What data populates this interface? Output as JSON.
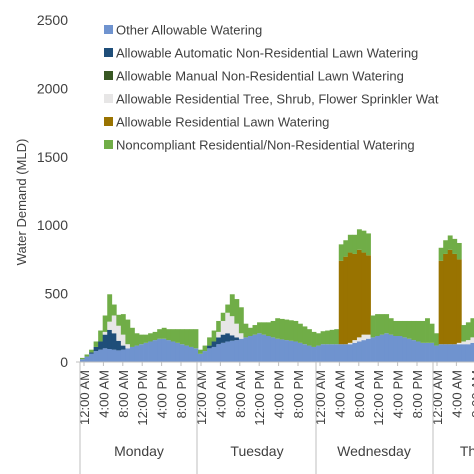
{
  "chart_data": {
    "type": "bar",
    "stacked": true,
    "title": "",
    "xlabel": "",
    "ylabel": "Water Demand (MLD)",
    "ylim": [
      0,
      2500
    ],
    "yticks": [
      0,
      500,
      1000,
      1500,
      2000,
      2500
    ],
    "grid": false,
    "legend_position": "top-right",
    "interval_hours": 2,
    "hour_tick_labels": [
      "12:00 AM",
      "4:00 AM",
      "8:00 AM",
      "12:00 PM",
      "4:00 PM",
      "8:00 PM"
    ],
    "days": [
      "Monday",
      "Tuesday",
      "Wednesday",
      "Th"
    ],
    "hour_ticks_per_day": [
      6,
      6,
      6,
      3
    ],
    "legend_order": [
      "noncomp",
      "res_lawn",
      "res_tree",
      "man_nonres",
      "auto_nonres",
      "other"
    ],
    "series": [
      {
        "key": "other",
        "name": "Other Allowable Watering",
        "color": "#6f93cf",
        "values": [
          20,
          40,
          60,
          80,
          90,
          100,
          95,
          90,
          85,
          90,
          100,
          110,
          120,
          130,
          140,
          150,
          160,
          170,
          170,
          160,
          150,
          140,
          130,
          120,
          110,
          100,
          60,
          80,
          100,
          110,
          130,
          140,
          150,
          155,
          160,
          170,
          180,
          190,
          200,
          210,
          200,
          190,
          180,
          170,
          165,
          160,
          155,
          150,
          140,
          130,
          120,
          110,
          120,
          130,
          130,
          130,
          130,
          130,
          130,
          130,
          140,
          150,
          160,
          170,
          180,
          190,
          200,
          210,
          200,
          190,
          190,
          180,
          170,
          160,
          150,
          140,
          140,
          140,
          120,
          130,
          130,
          130,
          130,
          130,
          130,
          130,
          140,
          150,
          160,
          170
        ]
      },
      {
        "key": "auto_nonres",
        "name": "Allowable Automatic Non-Residential Lawn Watering",
        "color": "#1f4e79",
        "values": [
          0,
          0,
          10,
          30,
          60,
          100,
          140,
          120,
          70,
          30,
          0,
          0,
          0,
          0,
          0,
          0,
          0,
          0,
          0,
          0,
          0,
          0,
          0,
          0,
          0,
          0,
          0,
          0,
          20,
          40,
          50,
          60,
          60,
          40,
          20,
          0,
          0,
          0,
          0,
          0,
          0,
          0,
          0,
          0,
          0,
          0,
          0,
          0,
          0,
          0,
          0,
          0,
          0,
          0,
          0,
          0,
          0,
          0,
          0,
          0,
          0,
          0,
          0,
          0,
          0,
          0,
          0,
          0,
          0,
          0,
          0,
          0,
          0,
          0,
          0,
          0,
          0,
          0,
          0,
          0,
          0,
          0,
          0,
          0,
          0,
          0,
          0,
          0,
          0,
          0
        ]
      },
      {
        "key": "man_nonres",
        "name": "Allowable Manual Non-Residential Lawn Watering",
        "color": "#385723",
        "values": [
          0,
          0,
          0,
          0,
          0,
          0,
          0,
          0,
          0,
          0,
          0,
          0,
          0,
          0,
          0,
          0,
          0,
          0,
          0,
          0,
          0,
          0,
          0,
          0,
          0,
          0,
          0,
          0,
          0,
          0,
          0,
          0,
          0,
          0,
          0,
          0,
          0,
          0,
          0,
          0,
          0,
          0,
          0,
          0,
          0,
          0,
          0,
          0,
          0,
          0,
          0,
          0,
          0,
          0,
          0,
          0,
          0,
          0,
          0,
          0,
          0,
          0,
          0,
          0,
          0,
          0,
          0,
          0,
          0,
          0,
          0,
          0,
          0,
          0,
          0,
          0,
          0,
          0,
          0,
          0,
          0,
          0,
          0,
          0,
          0,
          0,
          0,
          0,
          0,
          0
        ]
      },
      {
        "key": "res_tree",
        "name": "Allowable Residential Tree, Shrub, Flower Sprinkler Wat",
        "color": "#e7e6e6",
        "values": [
          0,
          0,
          0,
          0,
          0,
          20,
          60,
          130,
          110,
          80,
          30,
          0,
          0,
          0,
          0,
          0,
          0,
          0,
          0,
          0,
          0,
          0,
          0,
          0,
          0,
          0,
          0,
          0,
          0,
          0,
          40,
          100,
          150,
          140,
          100,
          40,
          0,
          0,
          0,
          0,
          0,
          0,
          0,
          0,
          0,
          0,
          0,
          0,
          0,
          0,
          0,
          0,
          0,
          0,
          0,
          0,
          0,
          0,
          0,
          10,
          20,
          30,
          40,
          30,
          0,
          0,
          0,
          0,
          0,
          0,
          0,
          0,
          0,
          0,
          0,
          0,
          0,
          0,
          0,
          0,
          0,
          0,
          0,
          10,
          20,
          30,
          40,
          30,
          0,
          0
        ]
      },
      {
        "key": "res_lawn",
        "name": "Allowable Residential Lawn Watering",
        "color": "#997300",
        "values": [
          0,
          0,
          0,
          0,
          0,
          0,
          0,
          0,
          0,
          0,
          0,
          0,
          0,
          0,
          0,
          0,
          0,
          0,
          0,
          0,
          0,
          0,
          0,
          0,
          0,
          0,
          0,
          0,
          0,
          0,
          0,
          0,
          0,
          0,
          0,
          0,
          0,
          0,
          0,
          0,
          0,
          0,
          0,
          0,
          0,
          0,
          0,
          0,
          0,
          0,
          0,
          0,
          0,
          0,
          0,
          0,
          0,
          0,
          0,
          0,
          0,
          0,
          0,
          0,
          0,
          0,
          0,
          0,
          0,
          0,
          0,
          0,
          0,
          0,
          0,
          0,
          0,
          0,
          0,
          0,
          0,
          0,
          0,
          0,
          0,
          0,
          0,
          0,
          0,
          0
        ]
      },
      {
        "key": "noncomp",
        "name": "Noncompliant Residential/Non-Residential Watering",
        "color": "#70ad47",
        "values": [
          10,
          15,
          20,
          40,
          80,
          120,
          200,
          80,
          80,
          150,
          180,
          140,
          90,
          70,
          60,
          60,
          60,
          70,
          80,
          80,
          90,
          100,
          110,
          120,
          130,
          140,
          30,
          40,
          60,
          80,
          80,
          60,
          60,
          160,
          180,
          190,
          100,
          60,
          70,
          80,
          90,
          100,
          120,
          150,
          150,
          150,
          150,
          150,
          140,
          130,
          120,
          110,
          90,
          95,
          100,
          105,
          110,
          120,
          120,
          130,
          140,
          150,
          160,
          160,
          160,
          160,
          150,
          140,
          120,
          110,
          110,
          120,
          130,
          140,
          150,
          160,
          180,
          140,
          90,
          95,
          100,
          105,
          110,
          120,
          120,
          130,
          140,
          150,
          160,
          160
        ]
      }
    ],
    "lawn_blocks": [
      {
        "start": 57,
        "end": 63,
        "values": [
          610,
          640,
          660,
          630,
          640,
          600,
          580
        ]
      },
      {
        "start": 79,
        "end": 83,
        "values": [
          610,
          660,
          690,
          660,
          610
        ]
      }
    ]
  }
}
